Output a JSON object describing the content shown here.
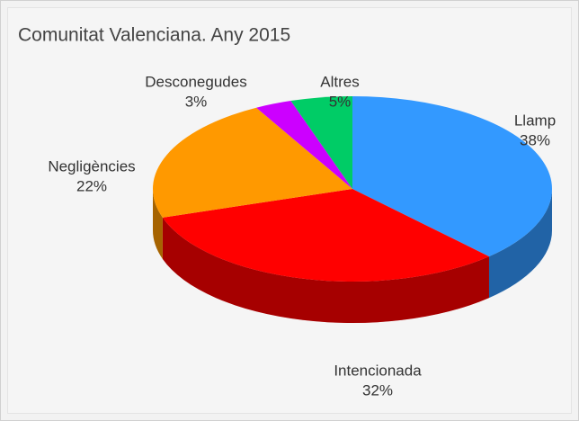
{
  "chart_data": {
    "type": "pie",
    "title": "Comunitat Valenciana. Any 2015",
    "categories": [
      "Llamp",
      "Intencionada",
      "Negligències",
      "Desconegudes",
      "Altres"
    ],
    "values": [
      38,
      32,
      22,
      3,
      5
    ],
    "value_labels": [
      "38%",
      "32%",
      "22%",
      "3%",
      "5%"
    ],
    "colors": [
      "#3399ff",
      "#ff0000",
      "#ff9900",
      "#cc00ff",
      "#00cc66"
    ]
  }
}
